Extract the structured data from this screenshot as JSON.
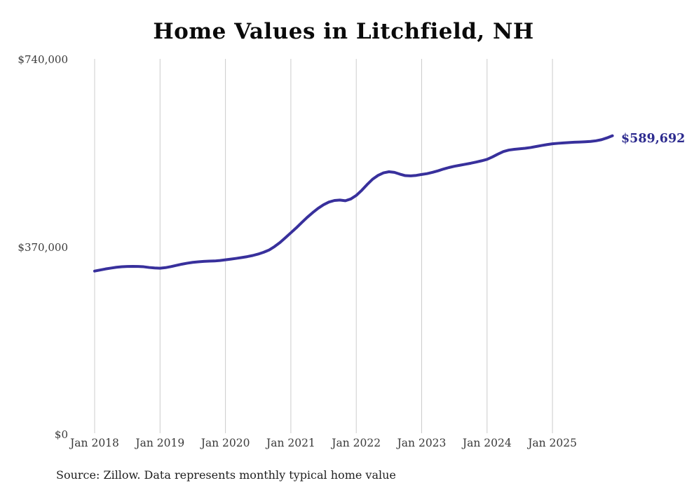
{
  "chart_data": {
    "type": "line",
    "title": "Home Values in Litchfield, NH",
    "xlabel": "",
    "ylabel": "",
    "ylim": [
      0,
      740000
    ],
    "grid": "vertical-yearly-gridlines",
    "legend": "none",
    "x_tick_labels": [
      "Jan 2018",
      "Jan 2019",
      "Jan 2020",
      "Jan 2021",
      "Jan 2022",
      "Jan 2023",
      "Jan 2024",
      "Jan 2025"
    ],
    "y_ticks": [
      {
        "value": 0,
        "label": "$0"
      },
      {
        "value": 370000,
        "label": "$370,000"
      },
      {
        "value": 740000,
        "label": "$740,000"
      }
    ],
    "end_label": "$589,692",
    "latest_value": 589692,
    "series": [
      {
        "name": "Monthly typical home value",
        "months": [
          "2018-01",
          "2018-02",
          "2018-03",
          "2018-04",
          "2018-05",
          "2018-06",
          "2018-07",
          "2018-08",
          "2018-09",
          "2018-10",
          "2018-11",
          "2018-12",
          "2019-01",
          "2019-02",
          "2019-03",
          "2019-04",
          "2019-05",
          "2019-06",
          "2019-07",
          "2019-08",
          "2019-09",
          "2019-10",
          "2019-11",
          "2019-12",
          "2020-01",
          "2020-02",
          "2020-03",
          "2020-04",
          "2020-05",
          "2020-06",
          "2020-07",
          "2020-08",
          "2020-09",
          "2020-10",
          "2020-11",
          "2020-12",
          "2021-01",
          "2021-02",
          "2021-03",
          "2021-04",
          "2021-05",
          "2021-06",
          "2021-07",
          "2021-08",
          "2021-09",
          "2021-10",
          "2021-11",
          "2021-12",
          "2022-01",
          "2022-02",
          "2022-03",
          "2022-04",
          "2022-05",
          "2022-06",
          "2022-07",
          "2022-08",
          "2022-09",
          "2022-10",
          "2022-11",
          "2022-12",
          "2023-01",
          "2023-02",
          "2023-03",
          "2023-04",
          "2023-05",
          "2023-06",
          "2023-07",
          "2023-08",
          "2023-09",
          "2023-10",
          "2023-11",
          "2023-12",
          "2024-01",
          "2024-02",
          "2024-03",
          "2024-04",
          "2024-05",
          "2024-06",
          "2024-07",
          "2024-08",
          "2024-09",
          "2024-10",
          "2024-11",
          "2024-12",
          "2025-01",
          "2025-02",
          "2025-03",
          "2025-04",
          "2025-05",
          "2025-06",
          "2025-07",
          "2025-08",
          "2025-09",
          "2025-10",
          "2025-11",
          "2025-12"
        ],
        "values": [
          322700,
          324800,
          326900,
          328600,
          330200,
          331200,
          331800,
          332000,
          331800,
          331200,
          329800,
          328800,
          328300,
          329500,
          331500,
          333900,
          336300,
          338300,
          339900,
          341000,
          341800,
          342300,
          342600,
          343500,
          344900,
          346300,
          347800,
          349400,
          351200,
          353400,
          356200,
          359800,
          364200,
          371000,
          379000,
          388500,
          398300,
          408000,
          418500,
          428700,
          438000,
          446500,
          453600,
          459000,
          462000,
          462800,
          461500,
          465000,
          472000,
          482000,
          493500,
          504000,
          511500,
          516500,
          518700,
          517500,
          514000,
          511000,
          510500,
          511500,
          513300,
          515000,
          517500,
          520500,
          524000,
          527000,
          529500,
          531500,
          533500,
          535500,
          537800,
          540300,
          543100,
          548000,
          553500,
          558500,
          561500,
          563000,
          564000,
          565000,
          566500,
          568500,
          570500,
          572300,
          573800,
          574800,
          575600,
          576300,
          576900,
          577300,
          577800,
          578500,
          579800,
          582000,
          585500,
          589692
        ]
      }
    ]
  },
  "footer": {
    "text": "Source: Zillow. Data represents monthly typical home value"
  },
  "colors": {
    "line": "#38309c",
    "end_label": "#2d2b8f",
    "gridline": "#cccccc",
    "axis_text": "#3a3a3a",
    "title_text": "#0a0a0a",
    "footer_text": "#1f1f1f",
    "background": "#ffffff"
  }
}
